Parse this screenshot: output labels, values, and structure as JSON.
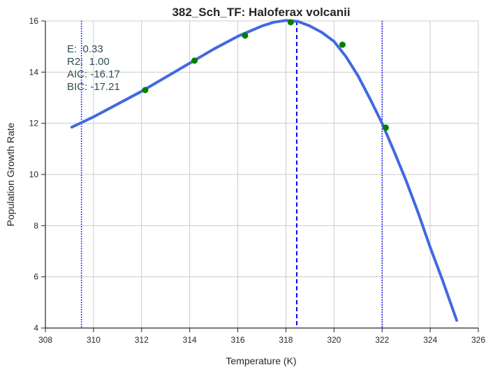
{
  "chart_data": {
    "type": "line",
    "title": "382_Sch_TF: Haloferax volcanii",
    "xlabel": "Temperature (K)",
    "ylabel": "Population Growth Rate",
    "xlim": [
      308,
      326
    ],
    "ylim": [
      4,
      16
    ],
    "xticks": [
      308,
      310,
      312,
      314,
      316,
      318,
      320,
      322,
      324,
      326
    ],
    "yticks": [
      4,
      6,
      8,
      10,
      12,
      14,
      16
    ],
    "grid": true,
    "stats": [
      "E:  0.33",
      "R2:  1.00",
      "AIC: -16.17",
      "BIC: -17.21"
    ],
    "fit_curve": {
      "color": "#4169e1",
      "x": [
        309.1,
        310.0,
        311.0,
        312.0,
        313.0,
        314.0,
        315.0,
        316.0,
        317.0,
        317.5,
        318.0,
        318.5,
        319.0,
        319.5,
        320.0,
        320.5,
        321.0,
        321.5,
        322.0,
        322.5,
        323.0,
        323.5,
        324.0,
        324.5,
        325.1
      ],
      "y": [
        11.85,
        12.25,
        12.75,
        13.25,
        13.8,
        14.35,
        14.9,
        15.4,
        15.8,
        15.95,
        16.02,
        15.98,
        15.8,
        15.55,
        15.2,
        14.6,
        13.85,
        12.95,
        12.0,
        10.9,
        9.75,
        8.5,
        7.15,
        5.9,
        4.3
      ]
    },
    "observed": {
      "color": "#008000",
      "x": [
        312.15,
        314.2,
        316.3,
        318.2,
        320.35,
        322.15
      ],
      "y": [
        13.3,
        14.45,
        15.43,
        15.95,
        15.07,
        11.83
      ]
    },
    "vlines": [
      {
        "x": 309.5,
        "style": "dotted",
        "color": "#0000ff"
      },
      {
        "x": 318.45,
        "style": "dashed",
        "color": "#0000ff"
      },
      {
        "x": 322.0,
        "style": "dotted",
        "color": "#0000ff"
      }
    ]
  }
}
